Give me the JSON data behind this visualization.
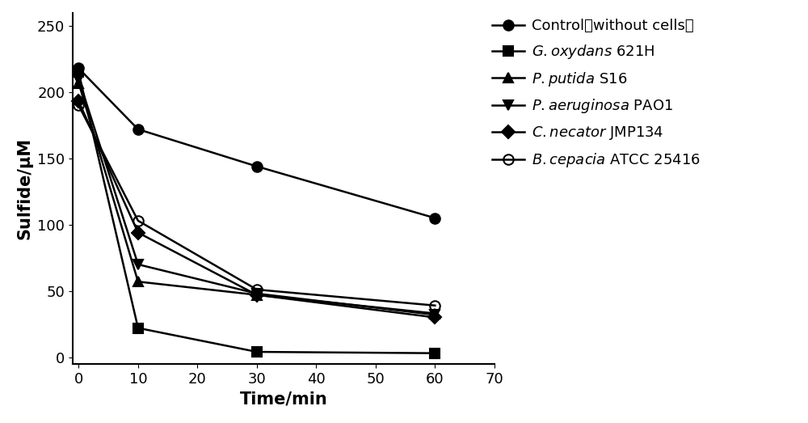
{
  "time": [
    0,
    10,
    30,
    60
  ],
  "series": [
    {
      "values": [
        218,
        172,
        144,
        105
      ],
      "marker": "o",
      "markersize": 9,
      "fillstyle": "full",
      "color": "#000000",
      "linewidth": 1.8
    },
    {
      "values": [
        215,
        22,
        4,
        3
      ],
      "marker": "s",
      "markersize": 9,
      "fillstyle": "full",
      "color": "#000000",
      "linewidth": 1.8
    },
    {
      "values": [
        207,
        57,
        47,
        33
      ],
      "marker": "^",
      "markersize": 9,
      "fillstyle": "full",
      "color": "#000000",
      "linewidth": 1.8
    },
    {
      "values": [
        210,
        70,
        48,
        32
      ],
      "marker": "v",
      "markersize": 9,
      "fillstyle": "full",
      "color": "#000000",
      "linewidth": 1.8
    },
    {
      "values": [
        193,
        94,
        47,
        30
      ],
      "marker": "D",
      "markersize": 8,
      "fillstyle": "full",
      "color": "#000000",
      "linewidth": 1.8
    },
    {
      "values": [
        190,
        103,
        51,
        39
      ],
      "marker": "o",
      "markersize": 9,
      "fillstyle": "none",
      "color": "#000000",
      "linewidth": 1.8
    }
  ],
  "legend_entries": [
    {
      "label": "Control（without cells）",
      "marker": "o",
      "fillstyle": "full"
    },
    {
      "label": "$\\it{G. oxydans}$ 621H",
      "marker": "s",
      "fillstyle": "full"
    },
    {
      "label": "$\\it{P. putida}$ S16",
      "marker": "^",
      "fillstyle": "full"
    },
    {
      "label": "$\\it{P. aeruginosa}$ PAO1",
      "marker": "v",
      "fillstyle": "full"
    },
    {
      "label": "$\\it{C. necator}$ JMP134",
      "marker": "D",
      "fillstyle": "full"
    },
    {
      "label": "$\\it{B. cepacia}$ ATCC 25416",
      "marker": "o",
      "fillstyle": "none"
    }
  ],
  "xlabel": "Time/min",
  "ylabel": "Sulfide/μM",
  "xlim": [
    -1,
    70
  ],
  "ylim": [
    -5,
    260
  ],
  "xticks": [
    0,
    10,
    20,
    30,
    40,
    50,
    60,
    70
  ],
  "yticks": [
    0,
    50,
    100,
    150,
    200,
    250
  ],
  "tick_fontsize": 13,
  "label_fontsize": 15,
  "legend_fontsize": 13,
  "background_color": "#ffffff"
}
